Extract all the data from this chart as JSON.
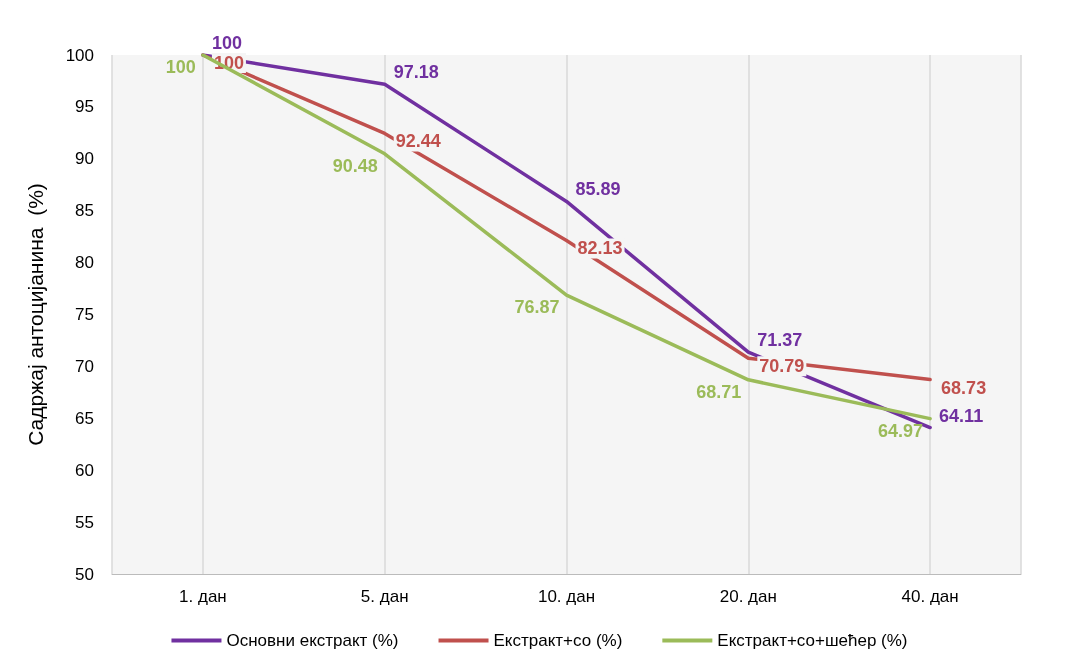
{
  "chart_data": {
    "type": "line",
    "ylabel": "Садржај антоцијанина  (%)",
    "categories": [
      "1. дан",
      "5. дан",
      "10. дан",
      "20. дан",
      "40. дан"
    ],
    "series": [
      {
        "name": "Основни екстракт (%)",
        "color": "#7030a0",
        "values": [
          100,
          97.18,
          85.89,
          71.37,
          64.11
        ]
      },
      {
        "name": "Екстракт+со (%)",
        "color": "#c0504d",
        "values": [
          100,
          92.44,
          82.13,
          70.79,
          68.73
        ]
      },
      {
        "name": "Екстракт+со+шећер (%)",
        "color": "#9bbb59",
        "values": [
          100,
          90.48,
          76.87,
          68.71,
          64.97
        ]
      }
    ],
    "ylim": [
      50,
      100
    ],
    "yticks": [
      50,
      55,
      60,
      65,
      70,
      75,
      80,
      85,
      90,
      95,
      100
    ],
    "grid": "x",
    "legend": "bottom",
    "data_labels": true,
    "marker": "none",
    "line_style": "solid"
  }
}
